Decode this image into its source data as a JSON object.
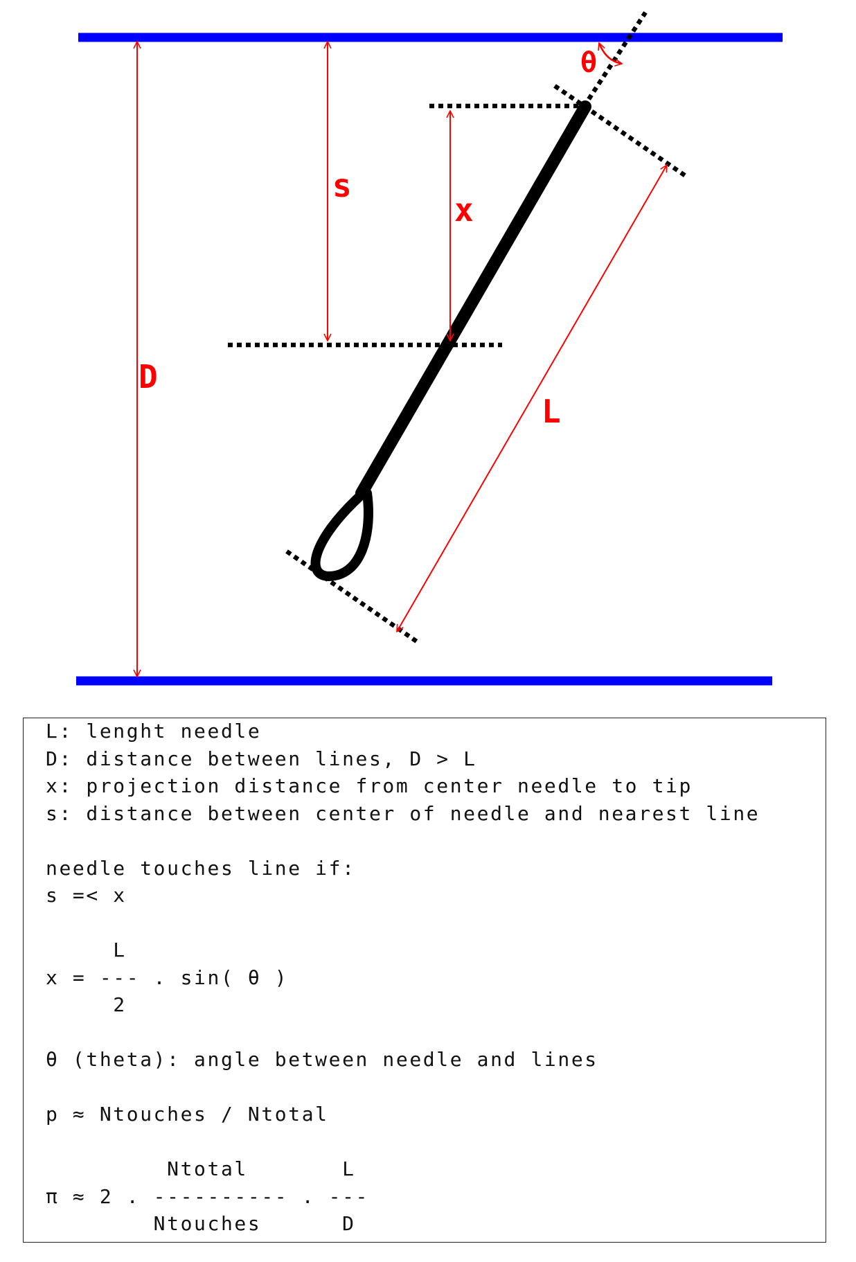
{
  "labels": {
    "theta": "θ",
    "s": "s",
    "x": "x",
    "D": "D",
    "L": "L"
  },
  "notes": [
    "L: lenght needle",
    "D: distance between lines, D > L",
    "x: projection distance from center needle to tip",
    "s: distance between center of needle and nearest line",
    "needle touches line if:",
    "s =< x",
    "     L",
    "x = --- . sin( θ )",
    "     2",
    "θ (theta): angle between needle and lines",
    "p ≈ Ntouches / Ntotal",
    "         Ntotal       L",
    "π ≈ 2 . ---------- . ---",
    "        Ntouches      D"
  ],
  "colors": {
    "boundary_lines": "#0000ff",
    "annotations": "#ff0000",
    "needle": "#000000"
  }
}
